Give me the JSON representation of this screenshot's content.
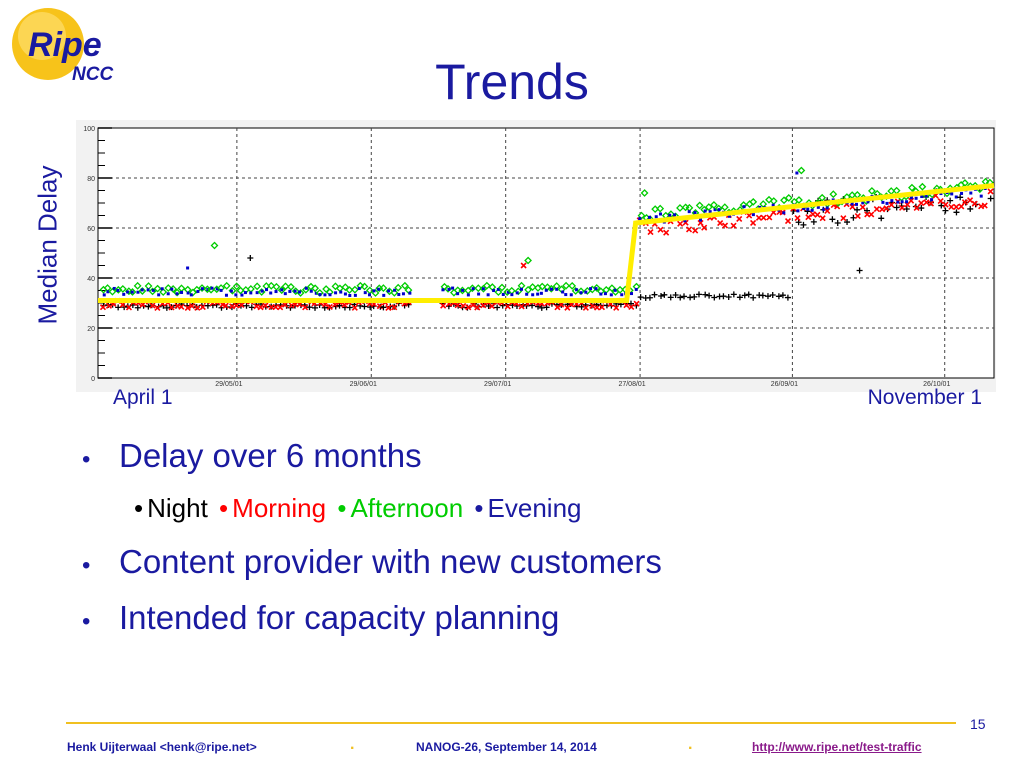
{
  "logo": {
    "main": "Ripe",
    "sub": "NCC"
  },
  "title": "Trends",
  "chart_data": {
    "type": "scatter",
    "ylabel": "Median Delay",
    "x_start_label": "April 1",
    "x_end_label": "November 1",
    "ylim": [
      0,
      100
    ],
    "y_ticks": [
      "0",
      "20",
      "40",
      "60",
      "80",
      "100"
    ],
    "x_tick_labels": [
      "29/05/01",
      "29/06/01",
      "29/07/01",
      "27/08/01",
      "26/09/01",
      "26/10/01"
    ],
    "grid": true,
    "trend_line": {
      "color": "#ffee00",
      "points": [
        [
          0,
          31
        ],
        [
          0.59,
          31
        ],
        [
          0.6,
          62
        ],
        [
          1.0,
          77
        ]
      ]
    },
    "series": [
      {
        "name": "Night",
        "color": "#000000",
        "marker": "plus"
      },
      {
        "name": "Morning",
        "color": "#ff0000",
        "marker": "x"
      },
      {
        "name": "Afternoon",
        "color": "#00cc00",
        "marker": "diamond"
      },
      {
        "name": "Evening",
        "color": "#0000cc",
        "marker": "square"
      }
    ]
  },
  "bullets": {
    "b1": "Delay over 6 months",
    "legend": [
      {
        "label": "Night",
        "color": "#000000"
      },
      {
        "label": "Morning",
        "color": "#ff0000"
      },
      {
        "label": "Afternoon",
        "color": "#00cc00"
      },
      {
        "label": "Evening",
        "color": "#1a1aa0"
      }
    ],
    "b2": "Content provider with new customers",
    "b3": "Intended for capacity planning"
  },
  "footer": {
    "author": "Henk Uijterwaal <henk@ripe.net>",
    "event": "NANOG-26, September 14, 2014",
    "url": "http://www.ripe.net/test-traffic",
    "page": "15"
  }
}
